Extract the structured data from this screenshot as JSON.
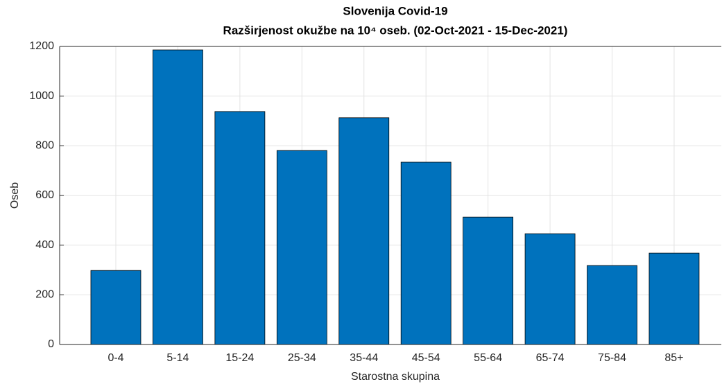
{
  "chart_data": {
    "type": "bar",
    "title": "Slovenija Covid-19",
    "subtitle": "Razširjenost okužbe na 10⁴ oseb. (02-Oct-2021 - 15-Dec-2021)",
    "xlabel": "Starostna skupina",
    "ylabel": "Oseb",
    "categories": [
      "0-4",
      "5-14",
      "15-24",
      "25-34",
      "35-44",
      "45-54",
      "55-64",
      "65-74",
      "75-84",
      "85+"
    ],
    "values": [
      298,
      1186,
      938,
      781,
      913,
      734,
      513,
      446,
      318,
      368
    ],
    "color": "#0072bd",
    "ylim": [
      0,
      1200
    ],
    "yticks": [
      0,
      200,
      400,
      600,
      800,
      1000,
      1200
    ],
    "grid": true
  }
}
